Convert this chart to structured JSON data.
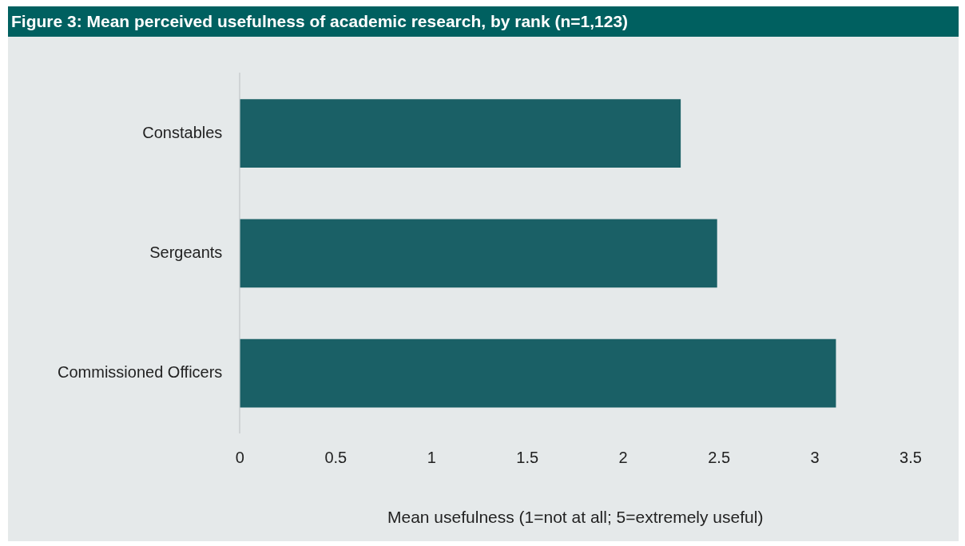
{
  "chart_data": {
    "type": "bar",
    "orientation": "horizontal",
    "title": "Figure 3: Mean perceived usefulness of academic research, by rank (n=1,123)",
    "xlabel": "Mean usefulness (1=not at all; 5=extremely useful)",
    "categories": [
      "Constables",
      "Sergeants",
      "Commissioned Officers"
    ],
    "values": [
      2.3,
      2.49,
      3.11
    ],
    "color": "#1a6066",
    "xlim": [
      0,
      3.5
    ],
    "xticks": [
      0,
      0.5,
      1,
      1.5,
      2,
      2.5,
      3,
      3.5
    ]
  }
}
